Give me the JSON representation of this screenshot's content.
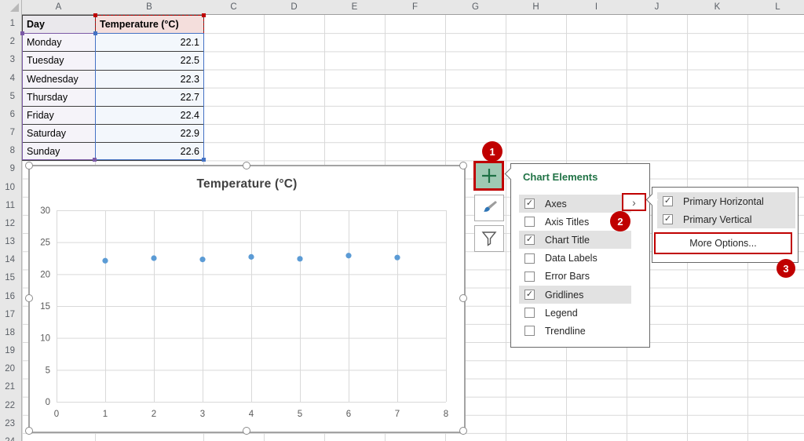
{
  "sheet": {
    "column_headers": [
      "A",
      "B",
      "C",
      "D",
      "E",
      "F",
      "G",
      "H",
      "I",
      "J",
      "K",
      "L"
    ],
    "row_numbers": [
      "1",
      "2",
      "3",
      "4",
      "5",
      "6",
      "7",
      "8",
      "9",
      "10",
      "11",
      "12",
      "13",
      "14",
      "15",
      "16",
      "17",
      "18",
      "19",
      "20",
      "21",
      "22",
      "23",
      "24"
    ],
    "table": {
      "columns": [
        "Day",
        "Temperature (°C)"
      ],
      "rows": [
        {
          "day": "Monday",
          "temp": "22.1"
        },
        {
          "day": "Tuesday",
          "temp": "22.5"
        },
        {
          "day": "Wednesday",
          "temp": "22.3"
        },
        {
          "day": "Thursday",
          "temp": "22.7"
        },
        {
          "day": "Friday",
          "temp": "22.4"
        },
        {
          "day": "Saturday",
          "temp": "22.9"
        },
        {
          "day": "Sunday",
          "temp": "22.6"
        }
      ]
    }
  },
  "chart_data": {
    "type": "scatter",
    "title": "Temperature (°C)",
    "x": [
      1,
      2,
      3,
      4,
      5,
      6,
      7
    ],
    "y": [
      22.1,
      22.5,
      22.3,
      22.7,
      22.4,
      22.9,
      22.6
    ],
    "point_labels": [
      "Monday",
      "Tuesday",
      "Wednesday",
      "Thursday",
      "Friday",
      "Saturday",
      "Sunday"
    ],
    "xlim": [
      0,
      8
    ],
    "ylim": [
      0,
      30
    ],
    "xticks": [
      0,
      1,
      2,
      3,
      4,
      5,
      6,
      7,
      8
    ],
    "yticks": [
      0,
      5,
      10,
      15,
      20,
      25,
      30
    ],
    "grid": true,
    "legend": false,
    "marker_color": "#5B9BD5"
  },
  "icons": {
    "plus": "+",
    "brush": "paintbrush-icon",
    "filter": "funnel-icon",
    "submenu_arrow": "›",
    "checkmark": "✓"
  },
  "chart_elements_panel": {
    "title": "Chart Elements",
    "items": [
      {
        "label": "Axes",
        "checked": true,
        "has_submenu_arrow": true
      },
      {
        "label": "Axis Titles",
        "checked": false
      },
      {
        "label": "Chart Title",
        "checked": true
      },
      {
        "label": "Data Labels",
        "checked": false
      },
      {
        "label": "Error Bars",
        "checked": false
      },
      {
        "label": "Gridlines",
        "checked": true
      },
      {
        "label": "Legend",
        "checked": false
      },
      {
        "label": "Trendline",
        "checked": false
      }
    ]
  },
  "axes_submenu": {
    "items": [
      {
        "label": "Primary Horizontal",
        "checked": true
      },
      {
        "label": "Primary Vertical",
        "checked": true
      }
    ],
    "more_options": "More Options..."
  },
  "annotations": {
    "badges": [
      "1",
      "2",
      "3"
    ]
  },
  "colors": {
    "annotation_red": "#C00000",
    "excel_green": "#217346",
    "marker_blue": "#5B9BD5",
    "range_purple": "#7B5AA6",
    "range_blue": "#4472C4",
    "range_red": "#C00000",
    "checked_row_grey": "#E2E2E2"
  }
}
